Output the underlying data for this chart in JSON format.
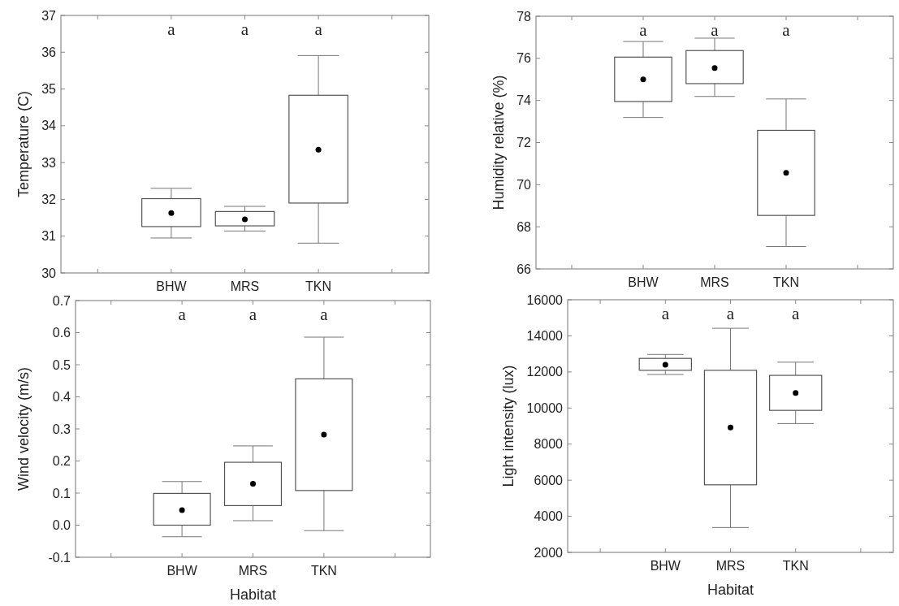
{
  "chart_data": [
    {
      "type": "box",
      "ylabel": "Temperature (C)",
      "categories": [
        "BHW",
        "MRS",
        "TKN"
      ],
      "ylim": [
        30,
        37
      ],
      "yticks": [
        30,
        31,
        32,
        33,
        34,
        35,
        36,
        37
      ],
      "boxes": [
        {
          "low": 30.95,
          "q1": 31.26,
          "median": 31.63,
          "q3": 32.02,
          "high": 32.3
        },
        {
          "low": 31.14,
          "q1": 31.28,
          "median": 31.46,
          "q3": 31.67,
          "high": 31.81
        },
        {
          "low": 30.81,
          "q1": 31.9,
          "median": 33.35,
          "q3": 34.83,
          "high": 35.91
        }
      ],
      "annotations": [
        "a",
        "a",
        "a"
      ]
    },
    {
      "type": "box",
      "ylabel": "Humidity relative (%)",
      "categories": [
        "BHW",
        "MRS",
        "TKN"
      ],
      "ylim": [
        66,
        78
      ],
      "yticks": [
        66,
        68,
        70,
        72,
        74,
        76,
        78
      ],
      "boxes": [
        {
          "low": 73.19,
          "q1": 73.95,
          "median": 75.0,
          "q3": 76.06,
          "high": 76.8
        },
        {
          "low": 74.19,
          "q1": 74.8,
          "median": 75.54,
          "q3": 76.37,
          "high": 76.96
        },
        {
          "low": 67.06,
          "q1": 68.54,
          "median": 70.56,
          "q3": 72.58,
          "high": 74.07
        }
      ],
      "annotations": [
        "a",
        "a",
        "a"
      ]
    },
    {
      "type": "box",
      "ylabel": "Wind velocity (m/s)",
      "xlabel": "Habitat",
      "categories": [
        "BHW",
        "MRS",
        "TKN"
      ],
      "ylim": [
        -0.1,
        0.7
      ],
      "yticks": [
        -0.1,
        {
          "value": 0,
          "label": "0.0"
        },
        0.1,
        0.2,
        0.3,
        0.4,
        0.5,
        0.6,
        0.7
      ],
      "boxes": [
        {
          "low": -0.036,
          "q1": 0.0,
          "median": 0.047,
          "q3": 0.099,
          "high": 0.136
        },
        {
          "low": 0.014,
          "q1": 0.061,
          "median": 0.129,
          "q3": 0.196,
          "high": 0.247
        },
        {
          "low": -0.017,
          "q1": 0.108,
          "median": 0.282,
          "q3": 0.456,
          "high": 0.586
        }
      ],
      "annotations": [
        "a",
        "a",
        "a"
      ]
    },
    {
      "type": "box",
      "ylabel": "Light intensity (lux)",
      "xlabel": "Habitat",
      "categories": [
        "BHW",
        "MRS",
        "TKN"
      ],
      "ylim": [
        2000,
        16000
      ],
      "yticks": [
        2000,
        4000,
        6000,
        8000,
        10000,
        12000,
        14000,
        16000
      ],
      "boxes": [
        {
          "low": 11860,
          "q1": 12090,
          "median": 12400,
          "q3": 12750,
          "high": 12970
        },
        {
          "low": 3380,
          "q1": 5745,
          "median": 8925,
          "q3": 12090,
          "high": 14420
        },
        {
          "low": 9140,
          "q1": 9870,
          "median": 10830,
          "q3": 11810,
          "high": 12540
        }
      ],
      "annotations": [
        "a",
        "a",
        "a"
      ]
    }
  ]
}
